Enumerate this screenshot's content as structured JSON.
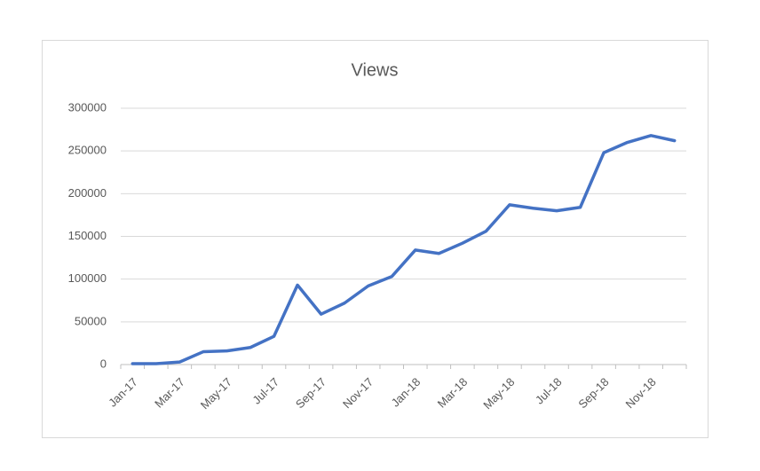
{
  "chart_data": {
    "type": "line",
    "title": "Views",
    "categories": [
      "Jan-17",
      null,
      "Mar-17",
      null,
      "May-17",
      null,
      "Jul-17",
      null,
      "Sep-17",
      null,
      "Nov-17",
      null,
      "Jan-18",
      null,
      "Mar-18",
      null,
      "May-18",
      null,
      "Jul-18",
      null,
      "Sep-18",
      null,
      "Nov-18",
      null
    ],
    "series": [
      {
        "name": "Views",
        "color": "#4472c4",
        "values": [
          1000,
          1000,
          3000,
          15000,
          16000,
          20000,
          33000,
          93000,
          59000,
          72000,
          92000,
          103000,
          134000,
          130000,
          142000,
          156000,
          187000,
          183000,
          180000,
          184000,
          248000,
          260000,
          268000,
          262000
        ]
      }
    ],
    "ylim": [
      0,
      300000
    ],
    "yticks": [
      0,
      50000,
      100000,
      150000,
      200000,
      250000,
      300000
    ],
    "grid": true
  }
}
